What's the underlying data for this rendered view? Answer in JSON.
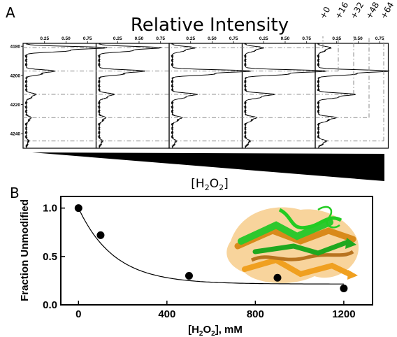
{
  "chart_data": [
    {
      "panel": "A",
      "type": "line",
      "title": "Relative Intensity",
      "x_tick_labels": [
        "0.25",
        "0.50",
        "0.75"
      ],
      "y_tick_labels": [
        "4180",
        "4200",
        "4220",
        "4240"
      ],
      "ylim": [
        4178,
        4250
      ],
      "xlim": [
        0,
        0.85
      ],
      "mass_shift_labels": [
        "+0",
        "+16",
        "+32",
        "+48",
        "+64"
      ],
      "mass_shift_positions": [
        4185,
        4201,
        4217,
        4233,
        4249
      ],
      "panel_count": 5,
      "gradient_label": "[H₂O₂]",
      "gradient_label_parts": {
        "open": "[H",
        "sub1": "2",
        "mid": "O",
        "sub2": "2",
        "close": "]"
      },
      "series": [
        {
          "peak_intensity": [
            0.98,
            0.35,
            0.12,
            0.06,
            0.03
          ]
        },
        {
          "peak_intensity": [
            0.75,
            0.55,
            0.18,
            0.08,
            0.04
          ]
        },
        {
          "peak_intensity": [
            0.28,
            0.95,
            0.3,
            0.12,
            0.05
          ]
        },
        {
          "peak_intensity": [
            0.22,
            0.98,
            0.35,
            0.14,
            0.06
          ]
        },
        {
          "peak_intensity": [
            0.15,
            0.85,
            0.45,
            0.22,
            0.1
          ]
        }
      ]
    },
    {
      "panel": "B",
      "type": "scatter",
      "xlabel": "[H2O2], mM",
      "xlabel_parts": {
        "open": "[H",
        "sub1": "2",
        "mid": "O",
        "sub2": "2",
        "close": "], mM"
      },
      "ylabel": "Fraction Unmodified",
      "x_ticks": [
        0,
        400,
        800,
        1200
      ],
      "y_ticks": [
        0.0,
        0.5,
        1.0
      ],
      "y_tick_labels": [
        "0.0",
        "0.5",
        "1.0"
      ],
      "xlim": [
        -80,
        1330
      ],
      "ylim": [
        0,
        1.12
      ],
      "points": [
        {
          "x": 0,
          "y": 1.0
        },
        {
          "x": 100,
          "y": 0.72
        },
        {
          "x": 500,
          "y": 0.3
        },
        {
          "x": 900,
          "y": 0.28
        },
        {
          "x": 1200,
          "y": 0.17
        }
      ],
      "fit": {
        "type": "exponential",
        "plateau": 0.215,
        "span": 0.785,
        "k": 0.0062
      },
      "colors": {
        "protein_a": "#f0a020",
        "protein_b": "#22cc22",
        "protein_c": "#b8731f"
      }
    }
  ],
  "panel_labels": {
    "a": "A",
    "b": "B"
  }
}
